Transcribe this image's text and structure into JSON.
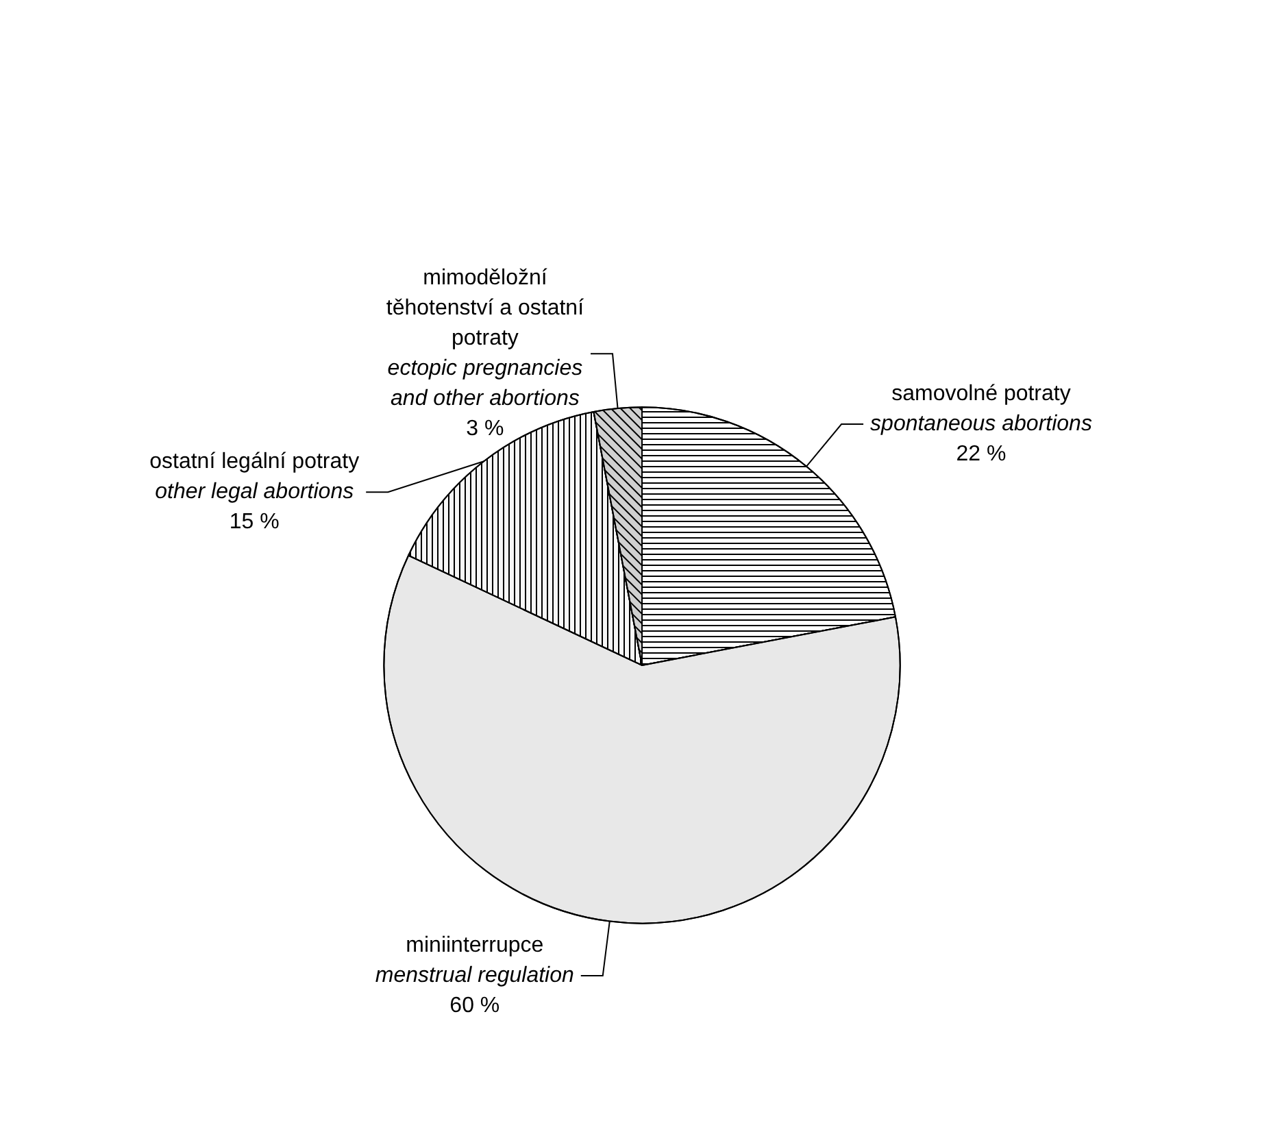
{
  "chart_data": {
    "type": "pie",
    "categories": [
      "samovolné potraty\n\nspontaneous abortions",
      "miniinterrupce\n\nmenstrual regulation",
      "ostatní legální potraty\n\nother legal abortions",
      "mimoděložní\ntěhotenství a ostatní\npotraty\n\nectopic pregnancies\nand other abortions"
    ],
    "values": [
      22,
      60,
      15,
      3
    ],
    "value_labels": [
      "22 %",
      "60 %",
      "15 %",
      "3 %"
    ],
    "colors": [
      "#ffffff",
      "#e8e8e8",
      "#f7f7f7",
      "#d0d0d0"
    ],
    "legend": false
  }
}
